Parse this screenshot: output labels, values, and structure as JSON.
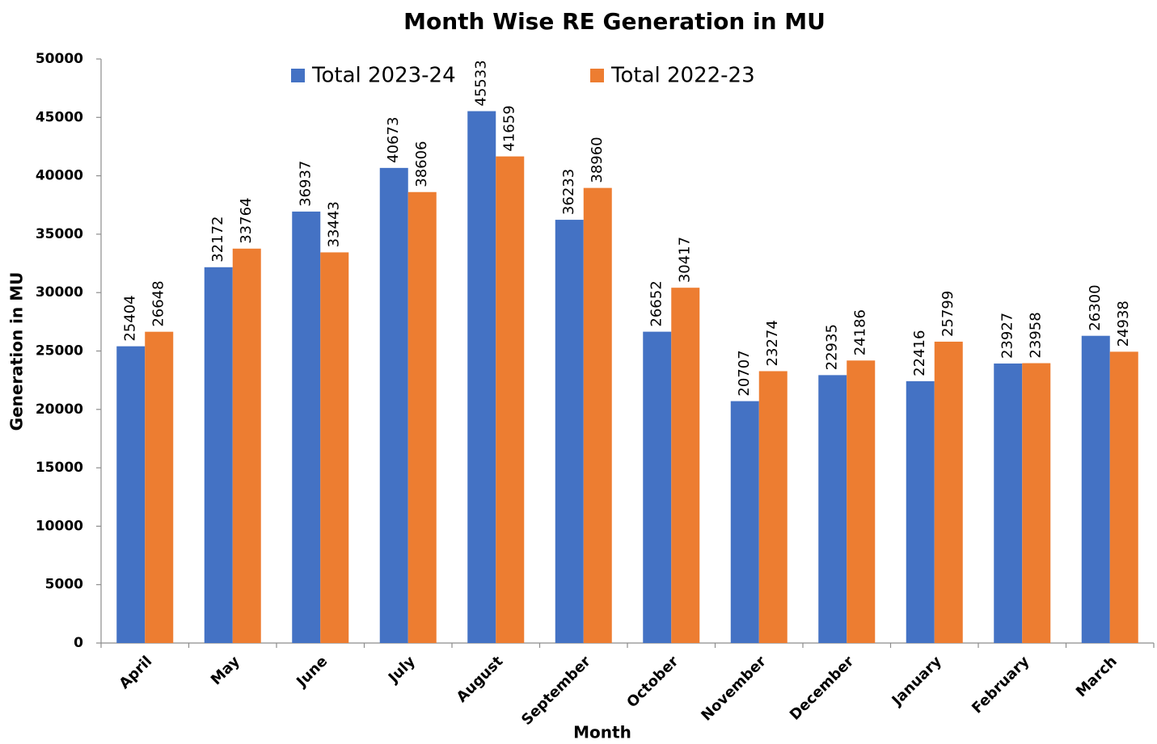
{
  "chart_data": {
    "type": "bar",
    "title": "Month Wise RE  Generation in MU",
    "x_label": "Month",
    "y_label": "Generation in MU",
    "categories": [
      "April",
      "May",
      "June",
      "July",
      "August",
      "September",
      "October",
      "November",
      "December",
      "January",
      "February",
      "March"
    ],
    "series": [
      {
        "name": "Total 2023-24",
        "color": "#4472c4",
        "values": [
          25404,
          32172,
          36937,
          40673,
          45533,
          36233,
          26652,
          20707,
          22935,
          22416,
          23927,
          26300
        ]
      },
      {
        "name": "Total 2022-23",
        "color": "#ed7d31",
        "values": [
          26648,
          33764,
          33443,
          38606,
          41659,
          38960,
          30417,
          23274,
          24186,
          25799,
          23958,
          24938
        ]
      }
    ],
    "ylim": [
      0,
      50000
    ],
    "yticks": [
      0,
      5000,
      10000,
      15000,
      20000,
      25000,
      30000,
      35000,
      40000,
      45000,
      50000
    ],
    "grid": false,
    "legend": "top"
  }
}
